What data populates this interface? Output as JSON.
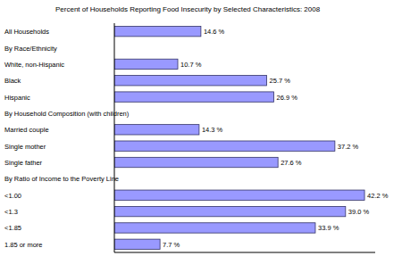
{
  "chart_data": {
    "type": "bar",
    "orientation": "horizontal",
    "title": "Percent of Households Reporting Food Insecurity by Selected Characteristics: 2008",
    "categories": [
      "All Households",
      "By Race/Ethnicity",
      "White, non-Hispanic",
      "Black",
      "Hispanic",
      "By Household Composition (with children)",
      "Married couple",
      "Single mother",
      "Single father",
      "By Ratio of Income to the Poverty Line",
      "<1.00",
      "<1.3",
      "<1.85",
      "1.85 or more"
    ],
    "values": [
      14.6,
      null,
      10.7,
      25.7,
      26.9,
      null,
      14.3,
      37.2,
      27.6,
      null,
      42.2,
      39.0,
      33.9,
      7.7
    ],
    "value_labels": [
      "14.6 %",
      null,
      "10.7 %",
      "25.7 %",
      "26.9 %",
      null,
      "14.3 %",
      "37.2 %",
      "27.6 %",
      null,
      "42.2 %",
      "39.0 %",
      "33.9 %",
      "7.7 %"
    ],
    "color": "#9999ff",
    "xlim": [
      0,
      44
    ],
    "data_labels": true,
    "tick_labels": false,
    "grid": false
  }
}
